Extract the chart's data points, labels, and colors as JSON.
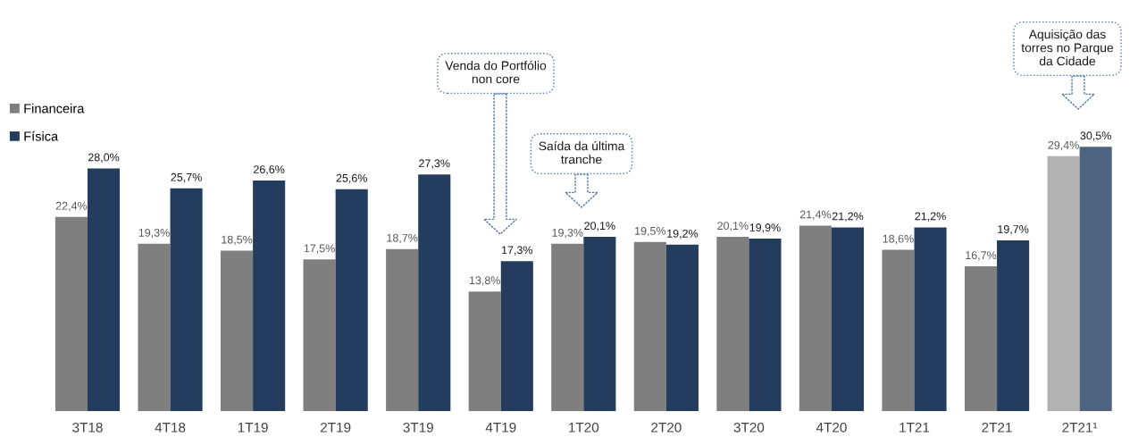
{
  "chart_data": {
    "type": "bar",
    "categories": [
      "3T18",
      "4T18",
      "1T19",
      "2T19",
      "3T19",
      "4T19",
      "1T20",
      "2T20",
      "3T20",
      "4T20",
      "1T21",
      "2T21",
      "2T21¹"
    ],
    "series": [
      {
        "name": "Financeira",
        "color": "#7f7f7f",
        "colors": [
          "#7f7f7f",
          "#7f7f7f",
          "#7f7f7f",
          "#7f7f7f",
          "#7f7f7f",
          "#7f7f7f",
          "#7f7f7f",
          "#7f7f7f",
          "#7f7f7f",
          "#7f7f7f",
          "#7f7f7f",
          "#7f7f7f",
          "#b2b2b2"
        ],
        "values": [
          22.4,
          19.3,
          18.5,
          17.5,
          18.7,
          13.8,
          19.3,
          19.5,
          20.1,
          21.4,
          18.6,
          16.7,
          29.4
        ],
        "value_labels": [
          "22,4%",
          "19,3%",
          "18,5%",
          "17,5%",
          "18,7%",
          "13,8%",
          "19,3%",
          "19,5%",
          "20,1%",
          "21,4%",
          "18,6%",
          "16,7%",
          "29,4%"
        ]
      },
      {
        "name": "Física",
        "color": "#243d5e",
        "colors": [
          "#243d5e",
          "#243d5e",
          "#243d5e",
          "#243d5e",
          "#243d5e",
          "#243d5e",
          "#243d5e",
          "#243d5e",
          "#243d5e",
          "#243d5e",
          "#243d5e",
          "#243d5e",
          "#4d6380"
        ],
        "values": [
          28.0,
          25.7,
          26.6,
          25.6,
          27.3,
          17.3,
          20.1,
          19.2,
          19.9,
          21.2,
          21.2,
          19.7,
          30.5
        ],
        "value_labels": [
          "28,0%",
          "25,7%",
          "26,6%",
          "25,6%",
          "27,3%",
          "17,3%",
          "20,1%",
          "19,2%",
          "19,9%",
          "21,2%",
          "21,2%",
          "19,7%",
          "30,5%"
        ]
      }
    ],
    "annotations": [
      "Venda do Portfólio\nnon core",
      "Saída da última\ntranche",
      "Aquisição das\ntorres no Parque\nda Cidade"
    ],
    "legend": "top left"
  }
}
